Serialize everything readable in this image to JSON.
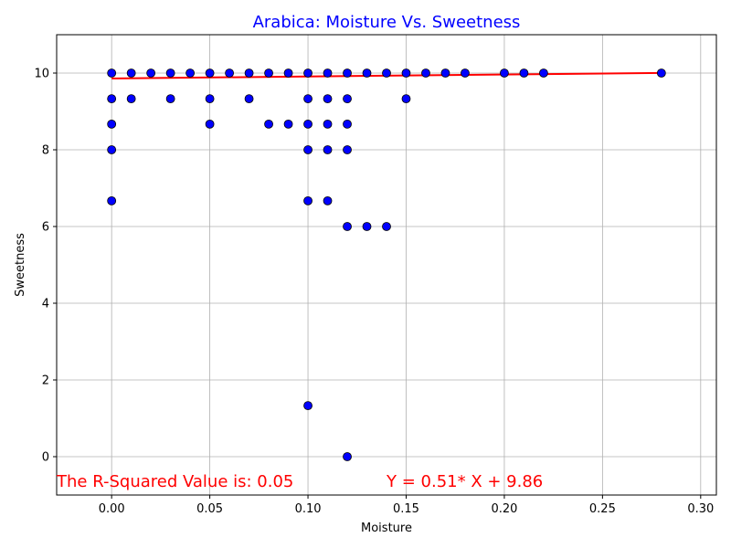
{
  "chart_data": {
    "type": "scatter",
    "title": "Arabica: Moisture Vs. Sweetness",
    "xlabel": "Moisture",
    "ylabel": "Sweetness",
    "xlim": [
      -0.028,
      0.308
    ],
    "ylim": [
      -1,
      11
    ],
    "xticks": [
      "0.00",
      "0.05",
      "0.10",
      "0.15",
      "0.20",
      "0.25",
      "0.30"
    ],
    "yticks": [
      "0",
      "2",
      "4",
      "6",
      "8",
      "10"
    ],
    "grid": true,
    "colors": {
      "title": "#0000ff",
      "points": "#0000ff",
      "point_edge": "#000000",
      "fit_line": "#ff0000",
      "annotation": "#ff0000",
      "grid": "#b0b0b0"
    },
    "points": [
      [
        0.0,
        10.0
      ],
      [
        0.0,
        9.33
      ],
      [
        0.0,
        8.67
      ],
      [
        0.0,
        8.0
      ],
      [
        0.0,
        6.67
      ],
      [
        0.01,
        10.0
      ],
      [
        0.01,
        9.33
      ],
      [
        0.02,
        10.0
      ],
      [
        0.03,
        10.0
      ],
      [
        0.03,
        9.33
      ],
      [
        0.04,
        10.0
      ],
      [
        0.05,
        10.0
      ],
      [
        0.05,
        9.33
      ],
      [
        0.05,
        8.67
      ],
      [
        0.06,
        10.0
      ],
      [
        0.07,
        10.0
      ],
      [
        0.07,
        9.33
      ],
      [
        0.08,
        10.0
      ],
      [
        0.08,
        8.67
      ],
      [
        0.09,
        10.0
      ],
      [
        0.09,
        8.67
      ],
      [
        0.1,
        10.0
      ],
      [
        0.1,
        9.33
      ],
      [
        0.1,
        8.67
      ],
      [
        0.1,
        8.0
      ],
      [
        0.1,
        6.67
      ],
      [
        0.1,
        1.33
      ],
      [
        0.11,
        10.0
      ],
      [
        0.11,
        9.33
      ],
      [
        0.11,
        8.67
      ],
      [
        0.11,
        8.0
      ],
      [
        0.11,
        6.67
      ],
      [
        0.12,
        10.0
      ],
      [
        0.12,
        9.33
      ],
      [
        0.12,
        8.67
      ],
      [
        0.12,
        8.0
      ],
      [
        0.12,
        6.0
      ],
      [
        0.12,
        0.0
      ],
      [
        0.13,
        10.0
      ],
      [
        0.13,
        6.0
      ],
      [
        0.14,
        10.0
      ],
      [
        0.14,
        6.0
      ],
      [
        0.15,
        10.0
      ],
      [
        0.15,
        9.33
      ],
      [
        0.16,
        10.0
      ],
      [
        0.17,
        10.0
      ],
      [
        0.18,
        10.0
      ],
      [
        0.2,
        10.0
      ],
      [
        0.21,
        10.0
      ],
      [
        0.22,
        10.0
      ],
      [
        0.28,
        10.0
      ]
    ],
    "fit_line": {
      "slope": 0.51,
      "intercept": 9.86,
      "x_range": [
        0.0,
        0.28
      ]
    },
    "annotations": {
      "r_squared": "The R-Squared Value is: 0.05",
      "equation": "Y = 0.51* X + 9.86"
    }
  }
}
